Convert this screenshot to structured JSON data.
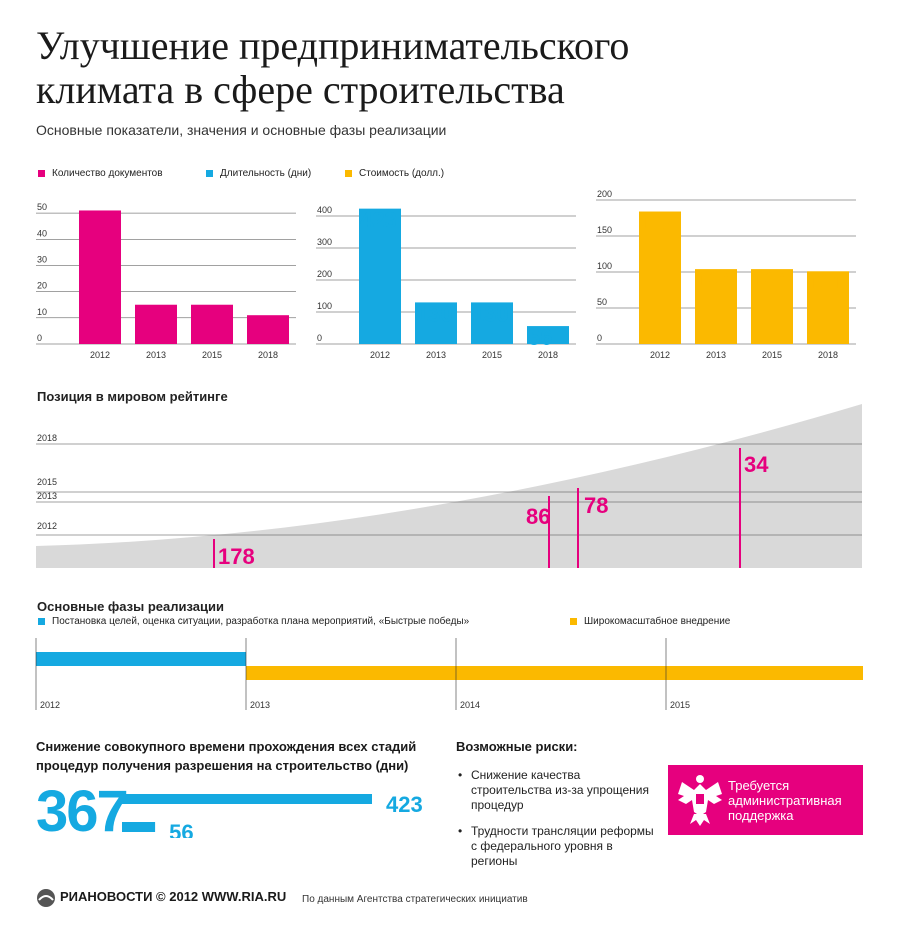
{
  "title": "Улучшение предпринимательского климата в сфере строительства",
  "subtitle": "Основные показатели, значения и основные фазы реализации",
  "colors": {
    "magenta": "#e6007e",
    "blue": "#15a9e1",
    "yellow": "#fbb900",
    "gray": "#d9d9d9"
  },
  "chart_data": [
    {
      "type": "bar",
      "series": [
        {
          "name": "Количество документов",
          "values": [
            51,
            15,
            15,
            11
          ]
        }
      ],
      "categories": [
        "2012",
        "2013",
        "2015",
        "2018"
      ],
      "ylim": [
        0,
        55
      ],
      "yticks": [
        "0",
        "10",
        "20",
        "30",
        "40",
        "50"
      ],
      "color": "#e6007e"
    },
    {
      "type": "bar",
      "series": [
        {
          "name": "Длительность (дни)",
          "values": [
            423,
            130,
            130,
            56
          ]
        }
      ],
      "categories": [
        "2012",
        "2013",
        "2015",
        "2018"
      ],
      "ylim": [
        0,
        450
      ],
      "yticks": [
        "0",
        "100",
        "200",
        "300",
        "400"
      ],
      "color": "#15a9e1"
    },
    {
      "type": "bar",
      "series": [
        {
          "name": "Стоимость (долл.)",
          "values": [
            184,
            104,
            104,
            101
          ]
        }
      ],
      "categories": [
        "2012",
        "2013",
        "2015",
        "2018"
      ],
      "ylim": [
        0,
        200
      ],
      "yticks": [
        "0",
        "50",
        "100",
        "150",
        "200"
      ],
      "color": "#fbb900"
    },
    {
      "type": "area",
      "title": "Позиция в мировом рейтинге",
      "series": [
        {
          "name": "",
          "values": [
            178,
            86,
            78,
            34
          ]
        }
      ],
      "categories": [
        "2012",
        "2013",
        "2015",
        "2018"
      ]
    },
    {
      "type": "bar",
      "title": "Снижение совокупного времени прохождения всех стадий процедур получения разрешения на строительство (дни)",
      "total": "367",
      "values": [
        423,
        56
      ]
    }
  ],
  "phases": {
    "title": "Основные фазы реализации",
    "legend": [
      {
        "label": "Постановка целей, оценка ситуации, разработка плана мероприятий, «Быстрые победы»",
        "color": "#15a9e1"
      },
      {
        "label": "Широкомасштабное внедрение",
        "color": "#fbb900"
      }
    ],
    "years": [
      "2012",
      "2013",
      "2014",
      "2015"
    ]
  },
  "risks": {
    "title": "Возможные риски:",
    "items": [
      "Снижение качества строительства из-за упрощения процедур",
      "Трудности трансляции реформы с федерального уровня в регионы"
    ]
  },
  "admin": "Требуется административная поддержка",
  "footer": {
    "logo": "РИАНОВОСТИ © 2012 WWW.RIA.RU",
    "source": "По данным Агентства стратегических инициатив"
  }
}
